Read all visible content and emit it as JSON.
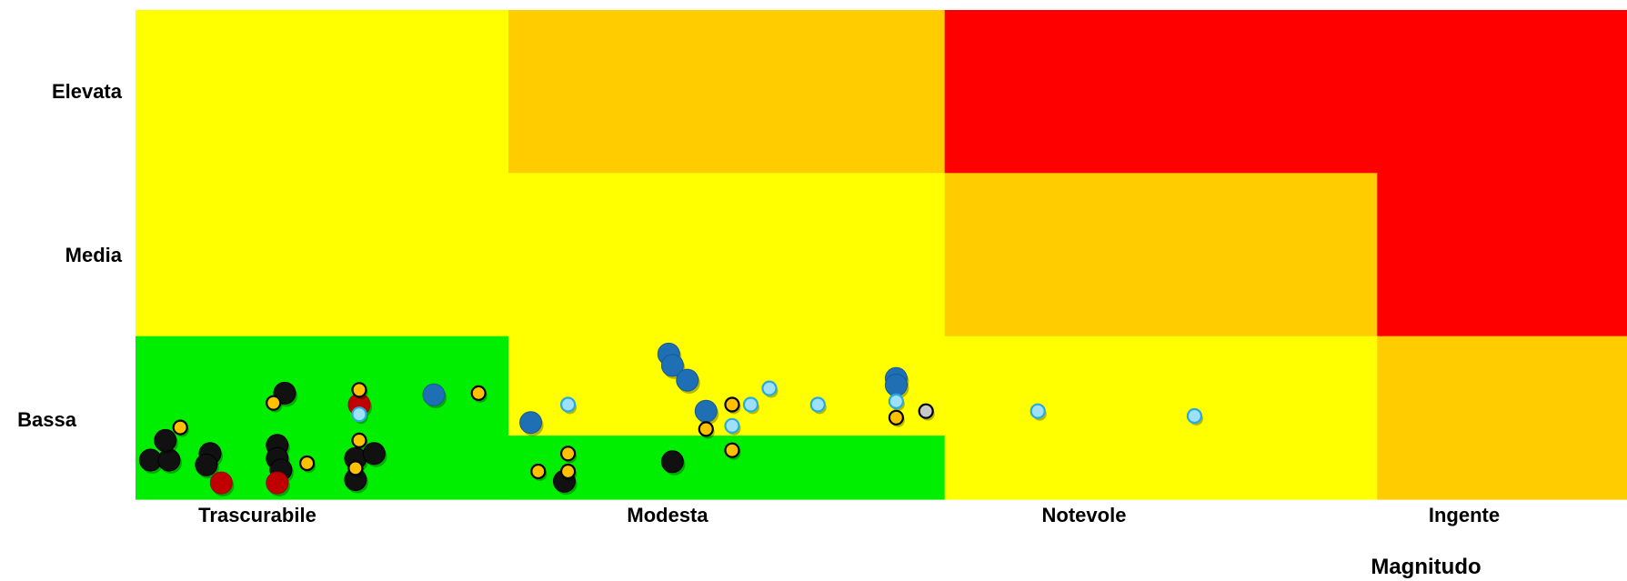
{
  "chart_data": {
    "type": "scatter",
    "title": "",
    "xlabel": "Magnitudo",
    "ylabel": "",
    "x_categories": [
      "Trascurabile",
      "Modesta",
      "Notevole",
      "Ingente"
    ],
    "y_categories": [
      "Bassa",
      "Media",
      "Elevata"
    ],
    "xlim": [
      0,
      4
    ],
    "ylim": [
      0,
      3
    ],
    "grid": false,
    "legend": "none",
    "zone_colors": {
      "green": "#00ee00",
      "yellow": "#ffff00",
      "orange": "#ffcc00",
      "red": "#ff0000"
    },
    "zones": [
      {
        "x": [
          0,
          1
        ],
        "y": [
          2,
          3
        ],
        "color": "yellow"
      },
      {
        "x": [
          1,
          2.17
        ],
        "y": [
          2,
          3
        ],
        "color": "orange"
      },
      {
        "x": [
          2.17,
          4
        ],
        "y": [
          2,
          3
        ],
        "color": "red"
      },
      {
        "x": [
          0,
          1
        ],
        "y": [
          1,
          2
        ],
        "color": "yellow"
      },
      {
        "x": [
          1,
          2.17
        ],
        "y": [
          1,
          2
        ],
        "color": "yellow"
      },
      {
        "x": [
          2.17,
          3.33
        ],
        "y": [
          1,
          2
        ],
        "color": "orange"
      },
      {
        "x": [
          3.33,
          4
        ],
        "y": [
          1,
          2
        ],
        "color": "red"
      },
      {
        "x": [
          0,
          1
        ],
        "y": [
          0,
          1
        ],
        "color": "green"
      },
      {
        "x": [
          1,
          2.17
        ],
        "y": [
          0,
          1
        ],
        "color": "yellow"
      },
      {
        "x": [
          1,
          2.17
        ],
        "y": [
          0,
          0.39
        ],
        "color": "green"
      },
      {
        "x": [
          2.17,
          3.33
        ],
        "y": [
          0,
          1
        ],
        "color": "yellow"
      },
      {
        "x": [
          3.33,
          4
        ],
        "y": [
          0,
          1
        ],
        "color": "orange"
      }
    ],
    "marker_styles": {
      "black": {
        "fill": "#111111",
        "stroke": "#000000",
        "size": "large"
      },
      "red": {
        "fill": "#c00000",
        "stroke": "#a00000",
        "size": "large"
      },
      "blue": {
        "fill": "#1f6fb5",
        "stroke": "#155a94",
        "size": "large"
      },
      "orange": {
        "fill": "#ffc000",
        "stroke": "#000000",
        "size": "small"
      },
      "lightblue": {
        "fill": "#9ee0f5",
        "stroke": "#29a9e0",
        "size": "small"
      },
      "gray": {
        "fill": "#c8c8c8",
        "stroke": "#000000",
        "size": "small"
      }
    },
    "series": [
      {
        "style": "black",
        "points": [
          [
            0.04,
            0.24
          ],
          [
            0.09,
            0.24
          ],
          [
            0.08,
            0.36
          ],
          [
            0.2,
            0.28
          ],
          [
            0.19,
            0.21
          ],
          [
            0.38,
            0.33
          ],
          [
            0.38,
            0.25
          ],
          [
            0.39,
            0.18
          ],
          [
            0.4,
            0.65
          ],
          [
            0.59,
            0.25
          ],
          [
            0.59,
            0.12
          ],
          [
            0.64,
            0.28
          ],
          [
            1.15,
            0.11
          ],
          [
            1.44,
            0.23
          ]
        ]
      },
      {
        "style": "red",
        "points": [
          [
            0.23,
            0.1
          ],
          [
            0.38,
            0.1
          ],
          [
            0.6,
            0.58
          ]
        ]
      },
      {
        "style": "blue",
        "points": [
          [
            0.8,
            0.64
          ],
          [
            1.06,
            0.47
          ],
          [
            1.43,
            0.89
          ],
          [
            1.44,
            0.82
          ],
          [
            1.48,
            0.73
          ],
          [
            1.53,
            0.54
          ],
          [
            2.04,
            0.74
          ],
          [
            2.04,
            0.7
          ]
        ]
      },
      {
        "style": "orange",
        "points": [
          [
            0.12,
            0.44
          ],
          [
            0.37,
            0.59
          ],
          [
            0.46,
            0.22
          ],
          [
            0.6,
            0.67
          ],
          [
            0.6,
            0.36
          ],
          [
            0.59,
            0.19
          ],
          [
            0.92,
            0.65
          ],
          [
            1.08,
            0.17
          ],
          [
            1.16,
            0.28
          ],
          [
            1.16,
            0.17
          ],
          [
            1.53,
            0.43
          ],
          [
            1.6,
            0.58
          ],
          [
            1.6,
            0.3
          ],
          [
            2.04,
            0.5
          ]
        ]
      },
      {
        "style": "lightblue",
        "points": [
          [
            0.6,
            0.52
          ],
          [
            1.16,
            0.58
          ],
          [
            1.6,
            0.45
          ],
          [
            1.65,
            0.58
          ],
          [
            1.7,
            0.68
          ],
          [
            1.83,
            0.58
          ],
          [
            2.04,
            0.6
          ],
          [
            2.42,
            0.54
          ],
          [
            2.84,
            0.51
          ]
        ]
      },
      {
        "style": "gray",
        "points": [
          [
            2.12,
            0.54
          ]
        ]
      }
    ]
  }
}
